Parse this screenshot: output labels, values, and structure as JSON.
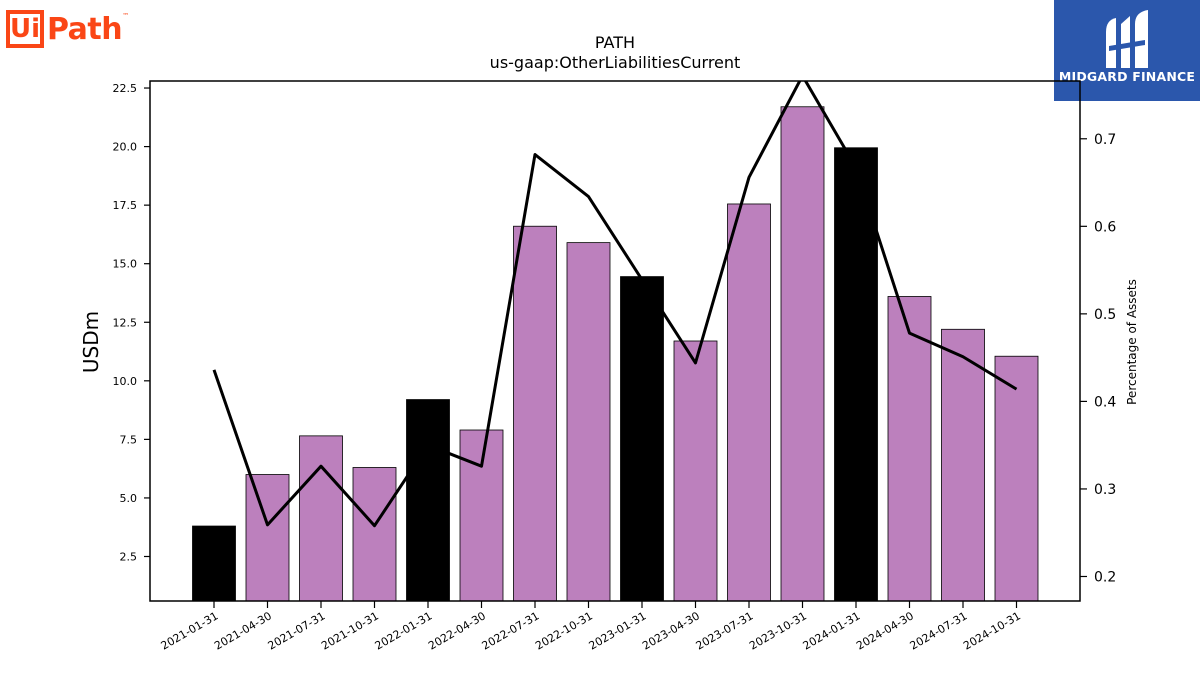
{
  "logos": {
    "left": {
      "box_text": "Ui",
      "text": "Path",
      "trademark": "™"
    },
    "right": {
      "text": "MIDGARD FINANCE"
    }
  },
  "colors": {
    "bar": "#bc80bd",
    "bar_highlight": "#000000",
    "line": "#000000",
    "logo_orange": "#fa4616",
    "logo_blue": "#2b57ac"
  },
  "chart_data": {
    "type": "bar",
    "title": "PATH",
    "subtitle": "us-gaap:OtherLiabilitiesCurrent",
    "ylabel": "USDm",
    "y2label": "Percentage of Assets",
    "ylim": [
      0.6,
      22.8
    ],
    "y2lim": [
      0.172,
      0.766
    ],
    "yticks": [
      "2.5",
      "5.0",
      "7.5",
      "10.0",
      "12.5",
      "15.0",
      "17.5",
      "20.0",
      "22.5"
    ],
    "y2ticks": [
      "0.2",
      "0.3",
      "0.4",
      "0.5",
      "0.6",
      "0.7"
    ],
    "categories": [
      "2021-01-31",
      "2021-04-30",
      "2021-07-31",
      "2021-10-31",
      "2022-01-31",
      "2022-04-30",
      "2022-07-31",
      "2022-10-31",
      "2023-01-31",
      "2023-04-30",
      "2023-07-31",
      "2023-10-31",
      "2024-01-31",
      "2024-04-30",
      "2024-07-31",
      "2024-10-31"
    ],
    "series": [
      {
        "values": [
          3.8,
          6.0,
          7.65,
          6.3,
          9.2,
          7.9,
          16.6,
          15.9,
          14.45,
          11.7,
          17.55,
          21.7,
          19.95,
          13.6,
          12.2,
          11.05
        ],
        "highlight": [
          true,
          false,
          false,
          false,
          true,
          false,
          false,
          false,
          true,
          false,
          false,
          false,
          true,
          false,
          false,
          false
        ]
      },
      {
        "axis": "right",
        "type": "line",
        "values": [
          0.436,
          0.259,
          0.326,
          0.258,
          0.35,
          0.326,
          0.682,
          0.634,
          0.539,
          0.444,
          0.656,
          0.772,
          0.667,
          0.478,
          0.451,
          0.414
        ]
      }
    ]
  }
}
